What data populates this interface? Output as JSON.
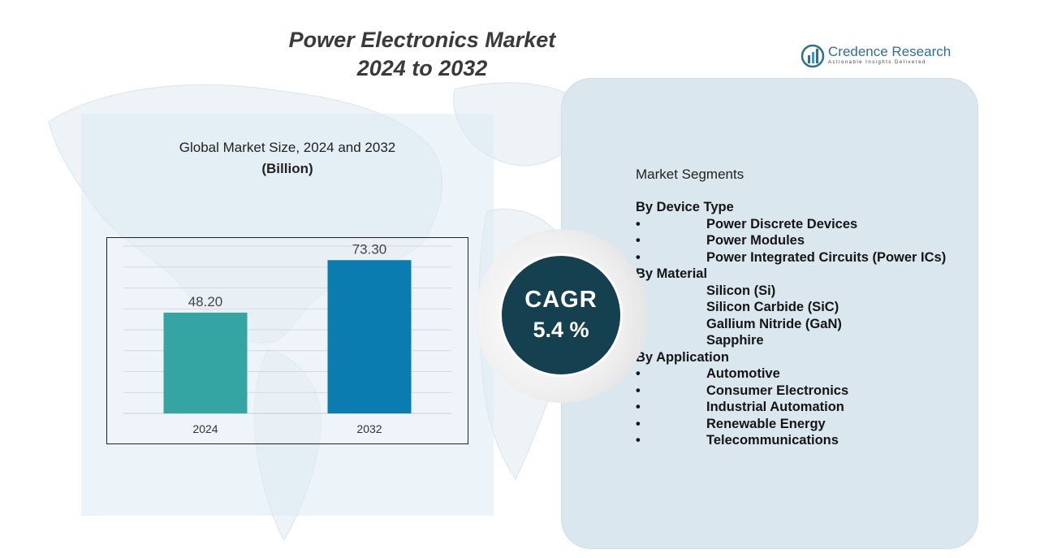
{
  "title": {
    "line1": "Power Electronics Market",
    "line2": "2024 to 2032"
  },
  "logo": {
    "name": "Credence Research",
    "tagline": "Actionable Insights Delivered",
    "brand_color": "#2d6f97"
  },
  "chart_title": {
    "main": "Global Market Size,  2024 and 2032",
    "sub": "(Billion)"
  },
  "chart_data": {
    "type": "bar",
    "categories": [
      "2024",
      "2032"
    ],
    "values": [
      48.2,
      73.3
    ],
    "value_labels": [
      "48.20",
      "73.30"
    ],
    "colors": [
      "#35a5a4",
      "#0a7cb0"
    ],
    "ylim": [
      0,
      80
    ],
    "grid": true,
    "xlabel": "",
    "ylabel": ""
  },
  "cagr": {
    "label": "CAGR",
    "value": "5.4 %",
    "color": "#15404f"
  },
  "segments": {
    "title": "Market Segments",
    "groups": [
      {
        "heading": "By Device Type",
        "items": [
          "Power Discrete Devices",
          "Power Modules",
          "Power Integrated Circuits (Power ICs)"
        ]
      },
      {
        "heading": "By Material",
        "items": [
          "Silicon (Si)",
          "Silicon Carbide (SiC)",
          "Gallium Nitride (GaN)",
          "Sapphire"
        ]
      },
      {
        "heading": "By Application",
        "items": [
          "Automotive",
          "Consumer Electronics",
          "Industrial Automation",
          "Renewable Energy",
          "Telecommunications"
        ]
      }
    ],
    "bullet": "•"
  }
}
